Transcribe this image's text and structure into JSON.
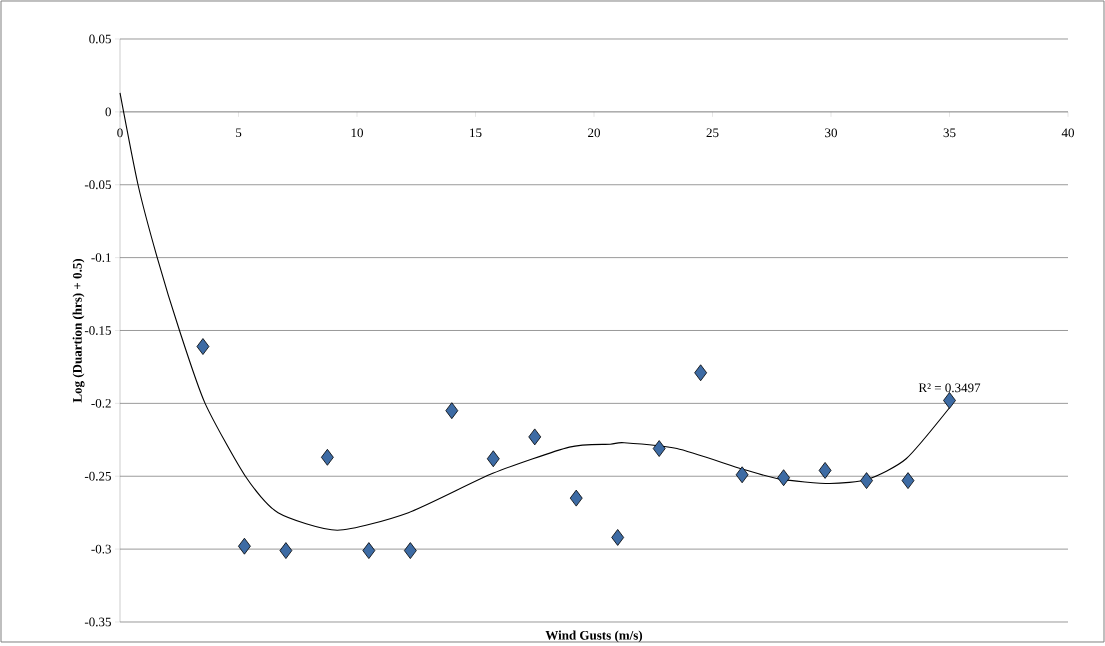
{
  "chart_data": {
    "type": "scatter",
    "xlabel": "Wind Gusts (m/s)",
    "ylabel": "Log (Duartion (hrs) + 0.5)",
    "xlim": [
      0,
      40
    ],
    "ylim": [
      -0.35,
      0.05
    ],
    "xticks": [
      0,
      5,
      10,
      15,
      20,
      25,
      30,
      35,
      40
    ],
    "yticks": [
      -0.35,
      -0.3,
      -0.25,
      -0.2,
      -0.15,
      -0.1,
      -0.05,
      0,
      0.05
    ],
    "grid": "y",
    "annotations": [
      "R² = 0.3497"
    ],
    "series": [
      {
        "marker": "diamond",
        "color": "#3d6ba4",
        "x": [
          3.5,
          5.25,
          7,
          8.75,
          10.5,
          12.25,
          14,
          15.75,
          17.5,
          19.25,
          21,
          22.75,
          24.5,
          26.25,
          28,
          29.75,
          31.5,
          33.25,
          35
        ],
        "values": [
          -0.161,
          -0.298,
          -0.301,
          -0.237,
          -0.301,
          -0.301,
          -0.205,
          -0.238,
          -0.223,
          -0.265,
          -0.292,
          -0.231,
          -0.179,
          -0.249,
          -0.251,
          -0.246,
          -0.253,
          -0.253,
          -0.198
        ]
      },
      {
        "type": "line",
        "marker": "none",
        "color": "#000000",
        "x": [
          0,
          0.76,
          1.57,
          2.51,
          3.59,
          5.29,
          6.67,
          9.17,
          12.17,
          15.73,
          18.96,
          20.68,
          21.27,
          23.5,
          26.25,
          27.85,
          29.95,
          31.56,
          33.17,
          35
        ],
        "values": [
          0.013,
          -0.05,
          -0.1,
          -0.15,
          -0.2,
          -0.25,
          -0.275,
          -0.287,
          -0.275,
          -0.248,
          -0.23,
          -0.228,
          -0.227,
          -0.231,
          -0.245,
          -0.252,
          -0.255,
          -0.252,
          -0.238,
          -0.203
        ]
      }
    ]
  }
}
